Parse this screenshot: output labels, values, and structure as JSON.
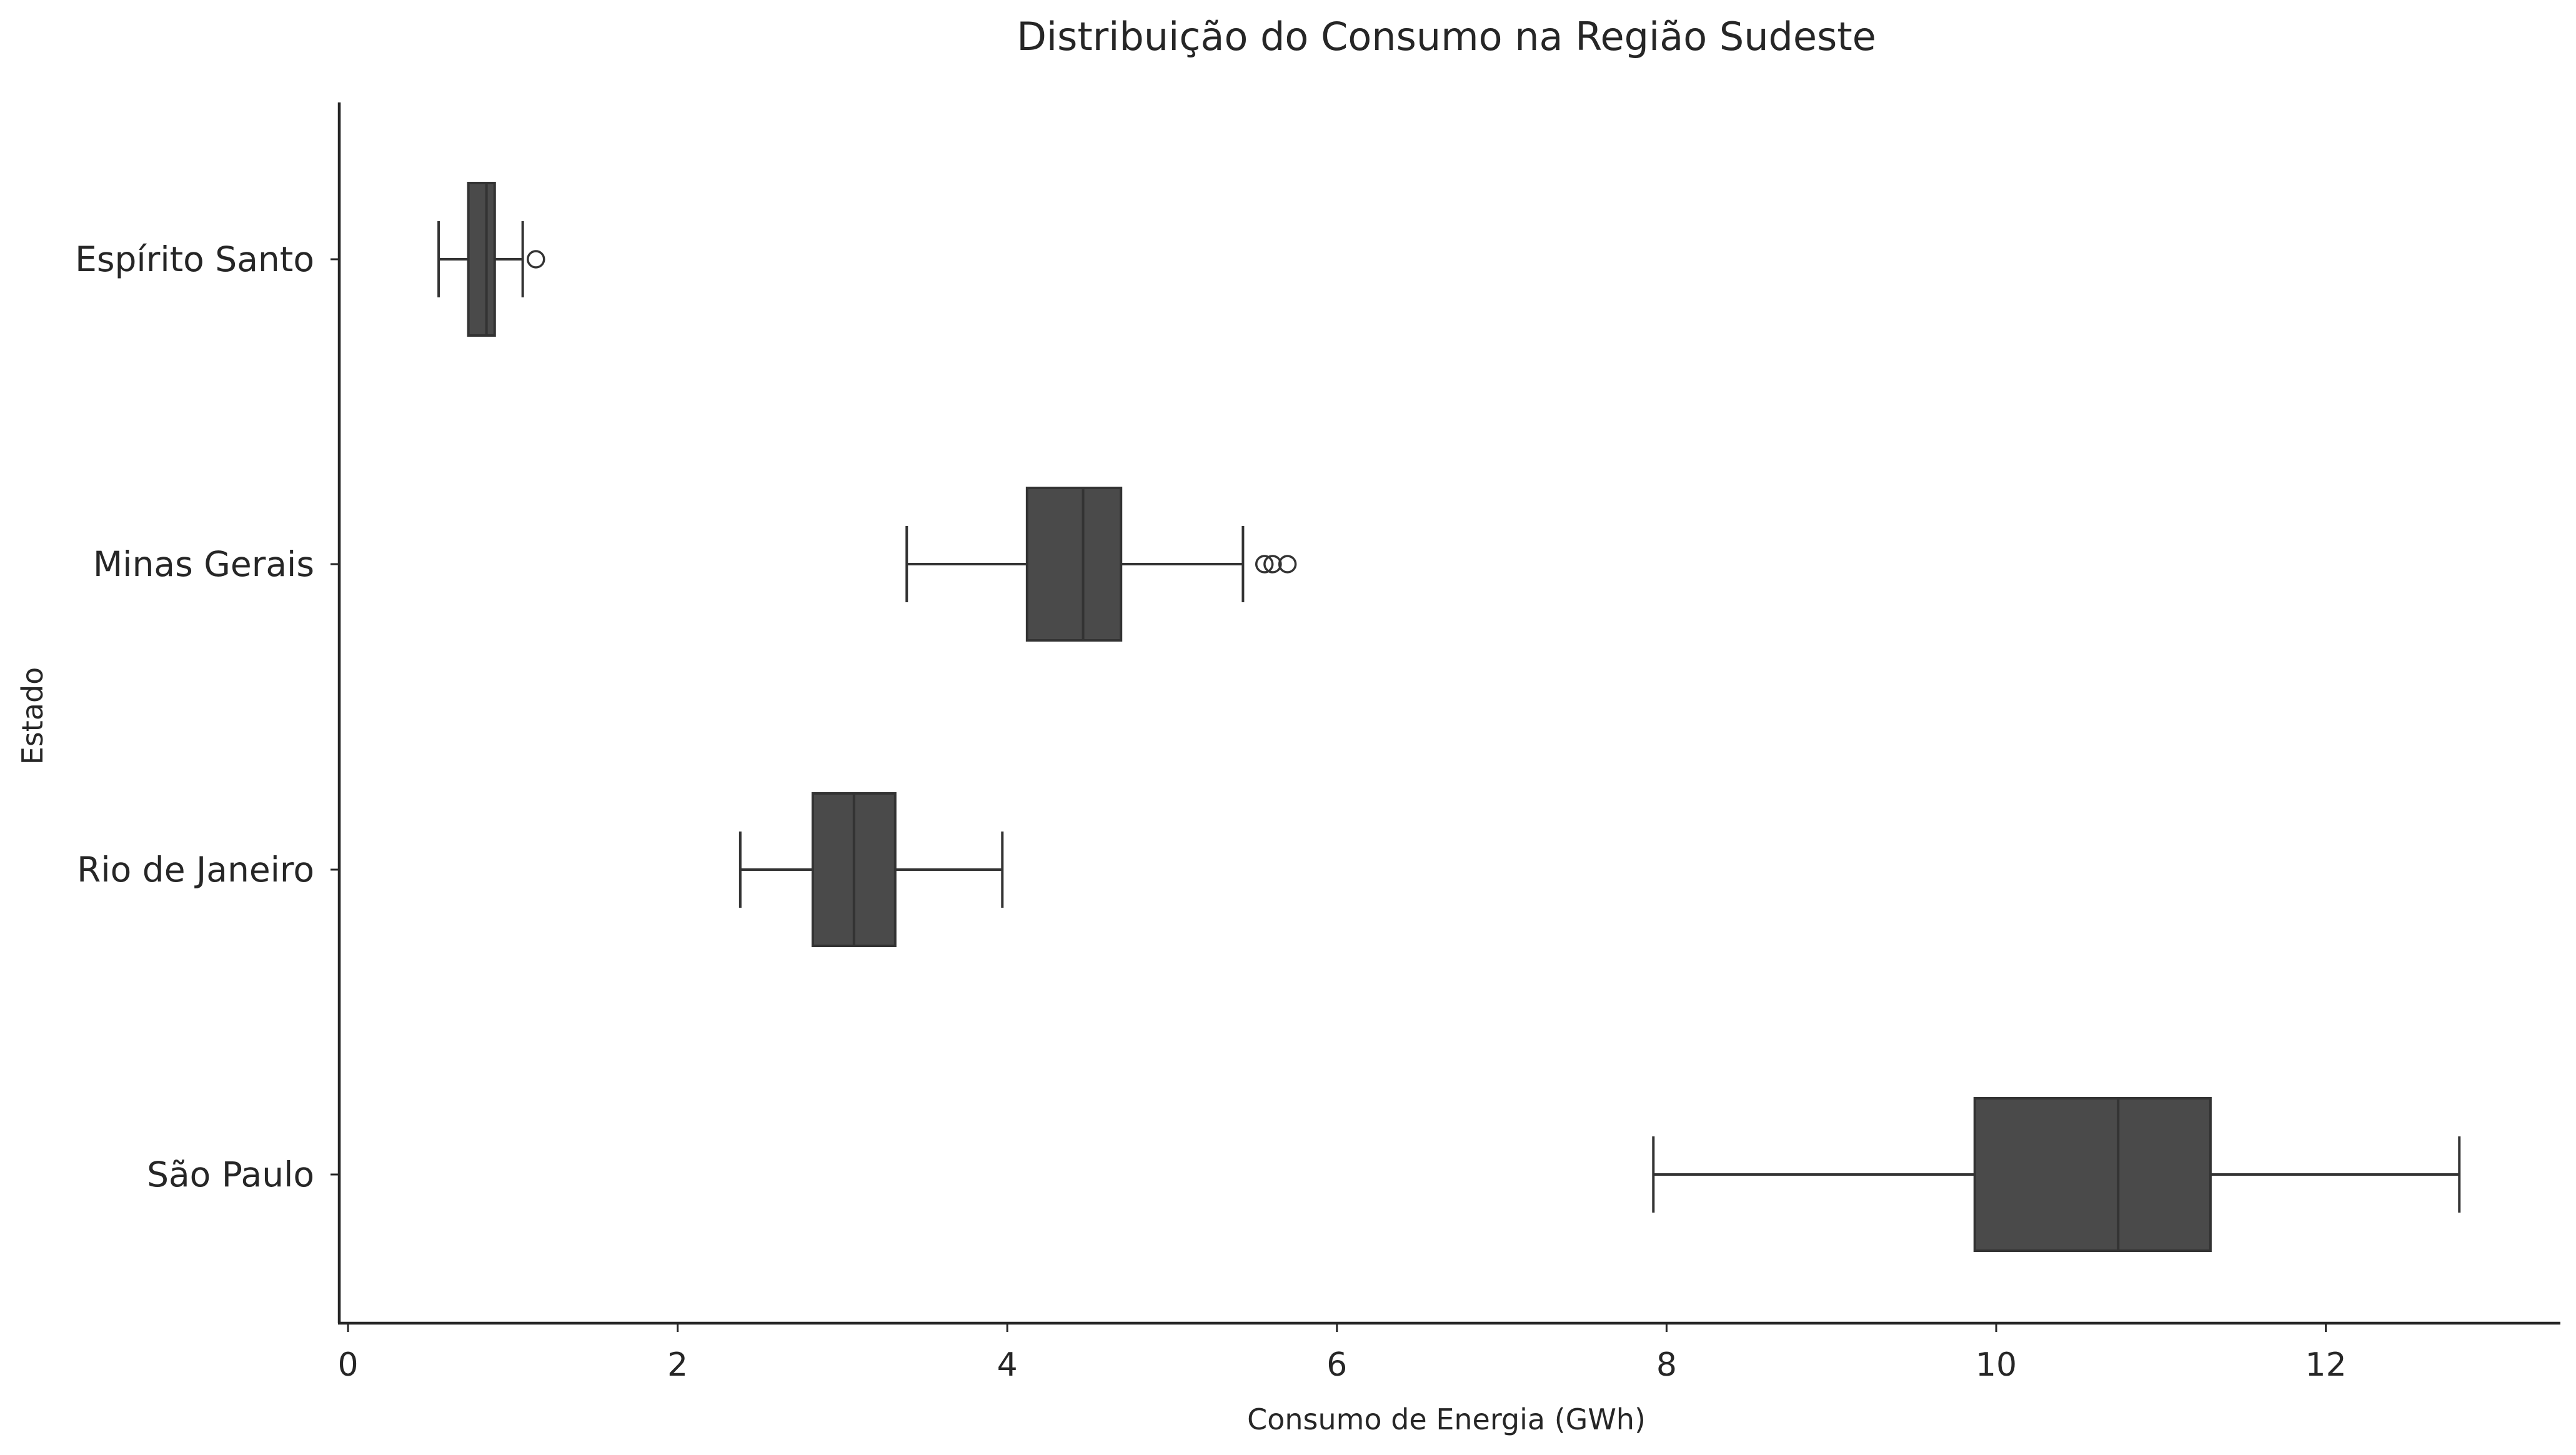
{
  "chart_data": {
    "type": "boxplot",
    "orientation": "horizontal",
    "title": "Distribuição do Consumo na Região Sudeste",
    "xlabel": "Consumo de Energia (GWh)",
    "ylabel": "Estado",
    "xlim": [
      0,
      13.45
    ],
    "xticks": [
      "0",
      "2",
      "4",
      "6",
      "8",
      "10",
      "12"
    ],
    "grid": false,
    "box_color": "#4a4a4a",
    "line_color": "#333333",
    "categories": [
      "Espírito Santo",
      "Minas Gerais",
      "Rio de Janeiro",
      "São Paulo"
    ],
    "boxes": [
      {
        "label": "Espírito Santo",
        "whisker_low": 0.55,
        "q1": 0.73,
        "median": 0.84,
        "q3": 0.89,
        "whisker_high": 1.06,
        "outliers": [
          1.14
        ]
      },
      {
        "label": "Minas Gerais",
        "whisker_low": 3.39,
        "q1": 4.12,
        "median": 4.46,
        "q3": 4.69,
        "whisker_high": 5.43,
        "outliers": [
          5.56,
          5.61,
          5.7
        ]
      },
      {
        "label": "Rio de Janeiro",
        "whisker_low": 2.38,
        "q1": 2.82,
        "median": 3.07,
        "q3": 3.32,
        "whisker_high": 3.97,
        "outliers": []
      },
      {
        "label": "São Paulo",
        "whisker_low": 7.92,
        "q1": 9.87,
        "median": 10.74,
        "q3": 11.3,
        "whisker_high": 12.81,
        "outliers": []
      }
    ]
  }
}
